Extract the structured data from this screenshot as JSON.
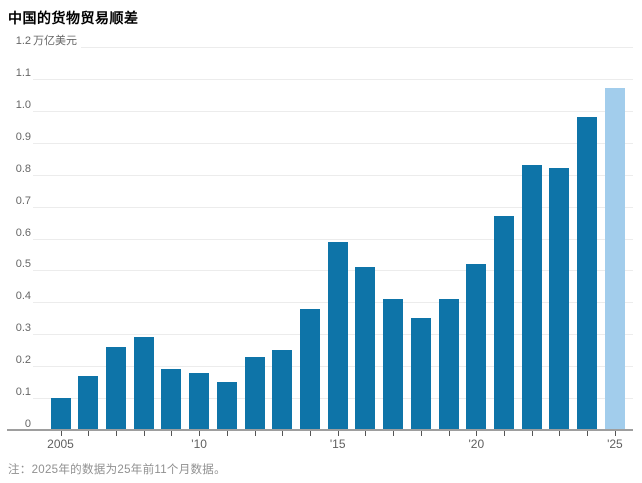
{
  "header": {
    "title": "中国的货物贸易顺差"
  },
  "footer": {
    "note": "注：2025年的数据为25年前11个月数据。"
  },
  "chart_data": {
    "type": "bar",
    "title": "中国的货物贸易顺差",
    "unit_label": "万亿美元",
    "categories": [
      2005,
      2006,
      2007,
      2008,
      2009,
      2010,
      2011,
      2012,
      2013,
      2014,
      2015,
      2016,
      2017,
      2018,
      2019,
      2020,
      2021,
      2022,
      2023,
      2024,
      2025
    ],
    "values": [
      0.1,
      0.17,
      0.26,
      0.29,
      0.19,
      0.18,
      0.15,
      0.23,
      0.25,
      0.38,
      0.59,
      0.51,
      0.41,
      0.35,
      0.41,
      0.52,
      0.67,
      0.83,
      0.82,
      0.98,
      1.07
    ],
    "highlight_year": 2025,
    "ylim": [
      0,
      1.2
    ],
    "y_tick_labels": [
      "1.2",
      "1.1",
      "1.0",
      "0.9",
      "0.8",
      "0.7",
      "0.6",
      "0.5",
      "0.4",
      "0.3",
      "0.2",
      "0.1",
      "0"
    ],
    "y_tick_values": [
      1.2,
      1.1,
      1.0,
      0.9,
      0.8,
      0.7,
      0.6,
      0.5,
      0.4,
      0.3,
      0.2,
      0.1,
      0
    ],
    "x_tick_labels": [
      {
        "text": "2005",
        "index": 0
      },
      {
        "text": "'10",
        "index": 5
      },
      {
        "text": "'15",
        "index": 10
      },
      {
        "text": "'20",
        "index": 15
      },
      {
        "text": "'25",
        "index": 20
      }
    ],
    "grid": true,
    "legend": null,
    "note": "注：2025年的数据为25年前11个月数据。",
    "colors": {
      "bar": "#0e74a8",
      "highlight_bar": "#a2cdec",
      "gridline": "#ececec",
      "axis": "#9e9e9e",
      "tick_mark": "#555555",
      "axis_label": "#666666",
      "title": "#000000",
      "note": "#909090",
      "background": "#ffffff"
    }
  }
}
